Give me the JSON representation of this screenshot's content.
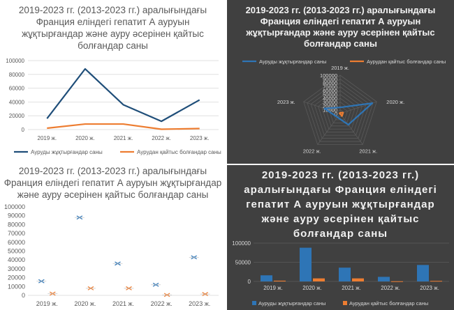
{
  "colors": {
    "series1": "#1f4e79",
    "series2": "#ed7d31",
    "series1_dark": "#2e75b6"
  },
  "chart_data": [
    {
      "type": "line",
      "title": "2019-2023 гг. (2013-2023 гг.) аралығындағы\nФранция еліндегі гепатит А ауруын\nжұқтырғандар және ауру әсерінен қайтыс\nболғандар саны",
      "categories": [
        "2019 ж.",
        "2020 ж.",
        "2021 ж.",
        "2022 ж.",
        "2023 ж."
      ],
      "series": [
        {
          "name": "Ауруды жұқтырғандар саны",
          "values": [
            16000,
            88000,
            36000,
            12000,
            43000
          ]
        },
        {
          "name": "Аурудан қайтыс болғандар саны",
          "values": [
            2000,
            8000,
            8000,
            500,
            1500
          ]
        }
      ],
      "yticks": [
        "0",
        "20000",
        "40000",
        "60000",
        "80000",
        "100000"
      ],
      "ylim": [
        0,
        100000
      ],
      "legend": "bottom"
    },
    {
      "type": "radar",
      "title": "2019-2023 гг. (2013-2023 гг.) аралығындағы\nФранция еліндегі гепатит А ауруын\nжұқтырғандар және ауру әсерінен қайтыс\nболғандар саны",
      "categories": [
        "2019 ж.",
        "2020 ж.",
        "2021 ж.",
        "2022 ж.",
        "2023 ж."
      ],
      "series": [
        {
          "name": "Ауруды жұқтырғандар саны",
          "values": [
            16000,
            88000,
            36000,
            12000,
            43000
          ]
        },
        {
          "name": "Аурудан қайтыс болғандар саны",
          "values": [
            2000,
            8000,
            8000,
            500,
            1500
          ]
        }
      ],
      "rticks": [
        "0",
        "10000",
        "20000",
        "30000",
        "40000",
        "50000",
        "60000",
        "70000",
        "80000",
        "90000",
        "100000"
      ],
      "rlim": [
        0,
        100000
      ],
      "legend": "top"
    },
    {
      "type": "scatter",
      "title": "2019-2023 гг. (2013-2023 гг.) аралығындағы\nФранция еліндегі гепатит А ауруын жұқтырғандар\nжәне ауру әсерінен қайтыс болғандар саны",
      "categories": [
        "2019 ж.",
        "2020 ж.",
        "2021 ж.",
        "2022 ж.",
        "2023 ж."
      ],
      "series": [
        {
          "name": "Ауруды жұқтырғандар саны",
          "values": [
            16000,
            88000,
            36000,
            12000,
            43000
          ]
        },
        {
          "name": "Аурудан қайтыс болғандар саны",
          "values": [
            2000,
            8000,
            8000,
            500,
            1500
          ]
        }
      ],
      "yticks": [
        "0",
        "10000",
        "20000",
        "30000",
        "40000",
        "50000",
        "60000",
        "70000",
        "80000",
        "90000",
        "100000"
      ],
      "ylim": [
        0,
        100000
      ],
      "marker": "x"
    },
    {
      "type": "bar",
      "title": "2019-2023 гг. (2013-2023 гг.)\nаралығындағы Франция еліндегі\nгепатит А ауруын жұқтырғандар\nжәне ауру әсерінен қайтыс\nболғандар саны",
      "categories": [
        "2019 ж.",
        "2020 ж.",
        "2021 ж.",
        "2022 ж.",
        "2023 ж."
      ],
      "series": [
        {
          "name": "Ауруды жұқтырғандар саны",
          "values": [
            16000,
            88000,
            36000,
            12000,
            43000
          ]
        },
        {
          "name": "Аурудан қайтыс болғандар саны",
          "values": [
            2000,
            8000,
            8000,
            500,
            1500
          ]
        }
      ],
      "yticks": [
        "0",
        "50000",
        "100000"
      ],
      "ylim": [
        0,
        100000
      ],
      "legend": "bottom"
    }
  ]
}
